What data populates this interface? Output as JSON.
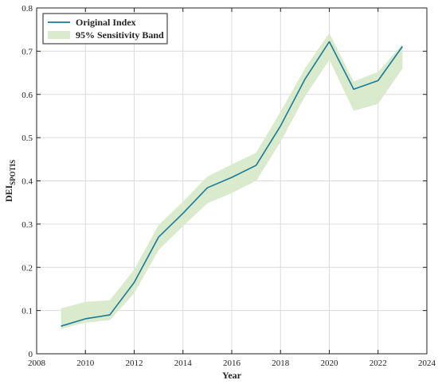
{
  "chart_data": {
    "type": "line",
    "xlabel": "Year",
    "ylabel_main": "DEI",
    "ylabel_sub": "SPOTIS",
    "xlim": [
      2008,
      2024
    ],
    "ylim": [
      0,
      0.8
    ],
    "grid": true,
    "legend_position": "top-left",
    "xticks": [
      2008,
      2010,
      2012,
      2014,
      2016,
      2018,
      2020,
      2022,
      2024
    ],
    "xtick_labels": [
      "2008",
      "2010",
      "2012",
      "2014",
      "2016",
      "2018",
      "2020",
      "2022",
      "2024"
    ],
    "yticks": [
      0,
      0.1,
      0.2,
      0.3,
      0.4,
      0.5,
      0.6,
      0.7,
      0.8
    ],
    "ytick_labels": [
      "0",
      "0.1",
      "0.2",
      "0.3",
      "0.4",
      "0.5",
      "0.6",
      "0.7",
      "0.8"
    ],
    "x": [
      2009,
      2010,
      2011,
      2012,
      2013,
      2014,
      2015,
      2016,
      2017,
      2018,
      2019,
      2020,
      2021,
      2022,
      2023
    ],
    "series": [
      {
        "name": "Original Index",
        "color": "#1a7a9a",
        "values": [
          0.064,
          0.081,
          0.09,
          0.165,
          0.27,
          0.325,
          0.384,
          0.408,
          0.436,
          0.527,
          0.635,
          0.722,
          0.612,
          0.632,
          0.711
        ]
      }
    ],
    "band": {
      "name": "95% Sensitivity Band",
      "color": "#d9ebcc",
      "lower": [
        0.058,
        0.072,
        0.078,
        0.14,
        0.24,
        0.295,
        0.348,
        0.372,
        0.4,
        0.49,
        0.595,
        0.68,
        0.562,
        0.578,
        0.66
      ],
      "upper": [
        0.105,
        0.12,
        0.124,
        0.195,
        0.298,
        0.352,
        0.41,
        0.438,
        0.465,
        0.56,
        0.66,
        0.742,
        0.63,
        0.652,
        0.716
      ]
    }
  }
}
